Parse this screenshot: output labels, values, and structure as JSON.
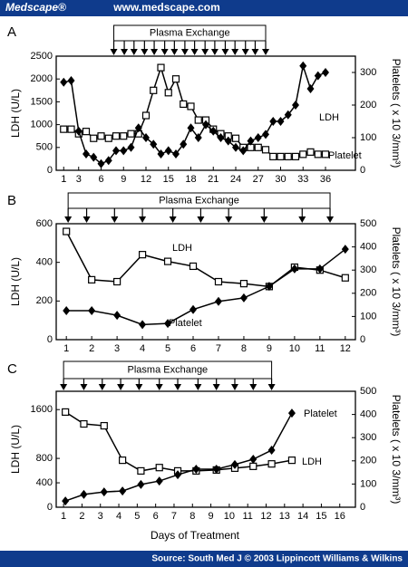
{
  "header": {
    "logo": "Medscape®",
    "url": "www.medscape.com"
  },
  "footer": "Source: South Med J © 2003 Lippincott Williams & Wilkins",
  "chart_data": [
    {
      "type": "line",
      "panel": "A",
      "annotation": "Plasma Exchange",
      "exchange_days": [
        7.7,
        9.1,
        10.4,
        11.8,
        13.1,
        14.5,
        15.8,
        17.2,
        18.5,
        19.9,
        21.2,
        22.6,
        23.9,
        25.3,
        26.6,
        28
      ],
      "ylabel": "LDH (U/L)",
      "y2label": "Platelets ( x 10 3/mm³)",
      "x": [
        1,
        2,
        3,
        4,
        5,
        6,
        7,
        8,
        9,
        10,
        11,
        12,
        13,
        14,
        15,
        16,
        17,
        18,
        19,
        20,
        21,
        22,
        23,
        24,
        25,
        26,
        27,
        28,
        29,
        30,
        31,
        32,
        33,
        34,
        35,
        36
      ],
      "xlim": [
        0,
        40
      ],
      "xticks": [
        1,
        3,
        6,
        9,
        12,
        15,
        18,
        21,
        24,
        27,
        30,
        33,
        36
      ],
      "ylim": [
        0,
        2500
      ],
      "yticks": [
        0,
        500,
        1000,
        1500,
        2000,
        2500
      ],
      "y2lim": [
        0,
        350
      ],
      "y2ticks": [
        0,
        100,
        200,
        300
      ],
      "series": [
        {
          "name": "LDH",
          "marker": "square",
          "color": "#000000",
          "values": [
            900,
            900,
            800,
            850,
            700,
            750,
            700,
            750,
            750,
            800,
            800,
            1200,
            1750,
            2250,
            1700,
            2000,
            1450,
            1400,
            1100,
            1100,
            900,
            800,
            750,
            700,
            500,
            500,
            500,
            450,
            300,
            300,
            300,
            300,
            350,
            400,
            350,
            350
          ]
        },
        {
          "name": "Platelet",
          "axis": "y2",
          "marker": "diamond",
          "color": "#000000",
          "values": [
            270,
            275,
            120,
            50,
            40,
            20,
            30,
            60,
            60,
            70,
            130,
            100,
            80,
            50,
            60,
            50,
            80,
            130,
            100,
            140,
            120,
            100,
            90,
            70,
            60,
            90,
            100,
            110,
            150,
            150,
            170,
            200,
            320,
            250,
            290,
            300
          ]
        }
      ]
    },
    {
      "type": "line",
      "panel": "B",
      "annotation": "Plasma Exchange",
      "exchange_days": [
        1.07,
        1.8,
        2.9,
        4,
        5.2,
        6.3,
        7.4,
        8.8,
        10.3,
        11.4
      ],
      "ylabel": "LDH (U/L)",
      "y2label": "Platelets ( x 10 3/mm³)",
      "x": [
        1,
        2,
        3,
        4,
        5,
        6,
        7,
        8,
        9,
        10,
        11,
        12
      ],
      "xlim": [
        0.6,
        12.4
      ],
      "xticks": [
        1,
        2,
        3,
        4,
        5,
        6,
        7,
        8,
        9,
        10,
        11,
        12
      ],
      "ylim": [
        0,
        600
      ],
      "yticks": [
        0,
        200,
        400,
        600
      ],
      "y2lim": [
        0,
        500
      ],
      "y2ticks": [
        0,
        100,
        200,
        300,
        400,
        500
      ],
      "series": [
        {
          "name": "LDH",
          "marker": "square",
          "color": "#000000",
          "values": [
            560,
            310,
            300,
            440,
            405,
            380,
            300,
            290,
            275,
            375,
            360,
            320
          ]
        },
        {
          "name": "Platelet",
          "axis": "y2",
          "marker": "diamond",
          "color": "#000000",
          "values": [
            125,
            125,
            105,
            65,
            70,
            130,
            165,
            180,
            230,
            305,
            305,
            390
          ]
        }
      ]
    },
    {
      "type": "line",
      "panel": "C",
      "annotation": "Plasma Exchange",
      "xlabel": "Days of Treatment",
      "exchange_days": [
        1,
        2.1,
        3.1,
        4.1,
        5.1,
        6.2,
        7.2,
        8.3,
        9.3,
        10.3,
        11.3,
        12.3
      ],
      "ylabel": "LDH (U/L)",
      "y2label": "Platelets ( x 10 3/mm³)",
      "x": [
        1.1,
        2.1,
        3.2,
        4.2,
        5.2,
        6.2,
        7.2,
        8.2,
        9.3,
        10.3,
        11.3,
        12.3,
        13.4
      ],
      "xlim": [
        0.6,
        16.85
      ],
      "xticks": [
        1,
        2,
        3,
        4,
        5,
        6,
        7,
        8,
        9,
        10,
        11,
        12,
        13,
        14,
        15,
        16
      ],
      "ylim": [
        0,
        1900
      ],
      "yticks": [
        0,
        400,
        800,
        1600
      ],
      "y2lim": [
        0,
        500
      ],
      "y2ticks": [
        0,
        100,
        200,
        300,
        400,
        500
      ],
      "series": [
        {
          "name": "LDH",
          "marker": "square",
          "color": "#000000",
          "values": [
            1560,
            1365,
            1335,
            770,
            595,
            650,
            595,
            595,
            610,
            640,
            670,
            710,
            770
          ]
        },
        {
          "name": "Platelet",
          "axis": "y2",
          "marker": "diamond",
          "color": "#000000",
          "values": [
            27,
            55,
            66,
            70,
            98,
            113,
            140,
            164,
            164,
            184,
            207,
            246,
            406
          ]
        }
      ]
    }
  ]
}
